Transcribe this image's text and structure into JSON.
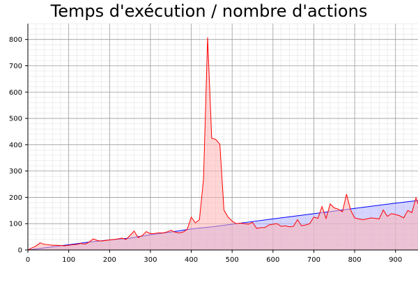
{
  "chart_data": {
    "type": "area",
    "title": "Temps d'exécution / nombre d'actions",
    "xlabel": "",
    "ylabel": "",
    "xlim": [
      0,
      955
    ],
    "ylim": [
      0,
      860
    ],
    "grid": true,
    "x_ticks": [
      0,
      100,
      200,
      300,
      400,
      500,
      600,
      700,
      800,
      900
    ],
    "y_ticks": [
      0,
      100,
      200,
      300,
      400,
      500,
      600,
      700,
      800
    ],
    "series": [
      {
        "color": "#0000ff",
        "fill": "#b3b3ff",
        "points": [
          [
            0,
            0
          ],
          [
            50,
            10
          ],
          [
            100,
            20
          ],
          [
            150,
            30
          ],
          [
            200,
            38
          ],
          [
            250,
            45
          ],
          [
            300,
            58
          ],
          [
            350,
            68
          ],
          [
            400,
            80
          ],
          [
            450,
            88
          ],
          [
            500,
            98
          ],
          [
            550,
            108
          ],
          [
            600,
            118
          ],
          [
            650,
            128
          ],
          [
            700,
            138
          ],
          [
            750,
            148
          ],
          [
            800,
            158
          ],
          [
            850,
            168
          ],
          [
            900,
            178
          ],
          [
            955,
            188
          ]
        ]
      },
      {
        "color": "#ff0000",
        "fill": "#ffb3b3",
        "points": [
          [
            0,
            0
          ],
          [
            10,
            8
          ],
          [
            20,
            15
          ],
          [
            30,
            27
          ],
          [
            40,
            22
          ],
          [
            50,
            20
          ],
          [
            60,
            18
          ],
          [
            70,
            18
          ],
          [
            80,
            17
          ],
          [
            90,
            16
          ],
          [
            100,
            18
          ],
          [
            110,
            20
          ],
          [
            120,
            21
          ],
          [
            130,
            25
          ],
          [
            140,
            22
          ],
          [
            150,
            30
          ],
          [
            160,
            42
          ],
          [
            170,
            36
          ],
          [
            180,
            34
          ],
          [
            190,
            36
          ],
          [
            200,
            38
          ],
          [
            210,
            40
          ],
          [
            220,
            42
          ],
          [
            230,
            45
          ],
          [
            240,
            40
          ],
          [
            250,
            55
          ],
          [
            260,
            72
          ],
          [
            270,
            47
          ],
          [
            280,
            55
          ],
          [
            290,
            70
          ],
          [
            300,
            62
          ],
          [
            310,
            63
          ],
          [
            320,
            65
          ],
          [
            330,
            65
          ],
          [
            340,
            68
          ],
          [
            350,
            75
          ],
          [
            360,
            68
          ],
          [
            370,
            65
          ],
          [
            380,
            68
          ],
          [
            390,
            78
          ],
          [
            400,
            125
          ],
          [
            410,
            103
          ],
          [
            420,
            115
          ],
          [
            430,
            270
          ],
          [
            440,
            808
          ],
          [
            450,
            425
          ],
          [
            460,
            420
          ],
          [
            470,
            402
          ],
          [
            480,
            152
          ],
          [
            490,
            125
          ],
          [
            500,
            110
          ],
          [
            510,
            100
          ],
          [
            520,
            102
          ],
          [
            530,
            100
          ],
          [
            540,
            98
          ],
          [
            550,
            105
          ],
          [
            560,
            82
          ],
          [
            570,
            85
          ],
          [
            580,
            85
          ],
          [
            590,
            95
          ],
          [
            600,
            98
          ],
          [
            610,
            100
          ],
          [
            620,
            90
          ],
          [
            630,
            92
          ],
          [
            640,
            88
          ],
          [
            650,
            90
          ],
          [
            660,
            115
          ],
          [
            670,
            92
          ],
          [
            680,
            95
          ],
          [
            690,
            100
          ],
          [
            700,
            125
          ],
          [
            710,
            120
          ],
          [
            720,
            165
          ],
          [
            730,
            120
          ],
          [
            740,
            175
          ],
          [
            750,
            160
          ],
          [
            760,
            155
          ],
          [
            770,
            145
          ],
          [
            780,
            212
          ],
          [
            790,
            152
          ],
          [
            800,
            122
          ],
          [
            810,
            118
          ],
          [
            820,
            115
          ],
          [
            830,
            118
          ],
          [
            840,
            122
          ],
          [
            850,
            120
          ],
          [
            860,
            118
          ],
          [
            870,
            152
          ],
          [
            880,
            128
          ],
          [
            890,
            138
          ],
          [
            900,
            135
          ],
          [
            910,
            130
          ],
          [
            920,
            122
          ],
          [
            930,
            150
          ],
          [
            940,
            142
          ],
          [
            950,
            198
          ],
          [
            955,
            175
          ]
        ]
      }
    ]
  }
}
